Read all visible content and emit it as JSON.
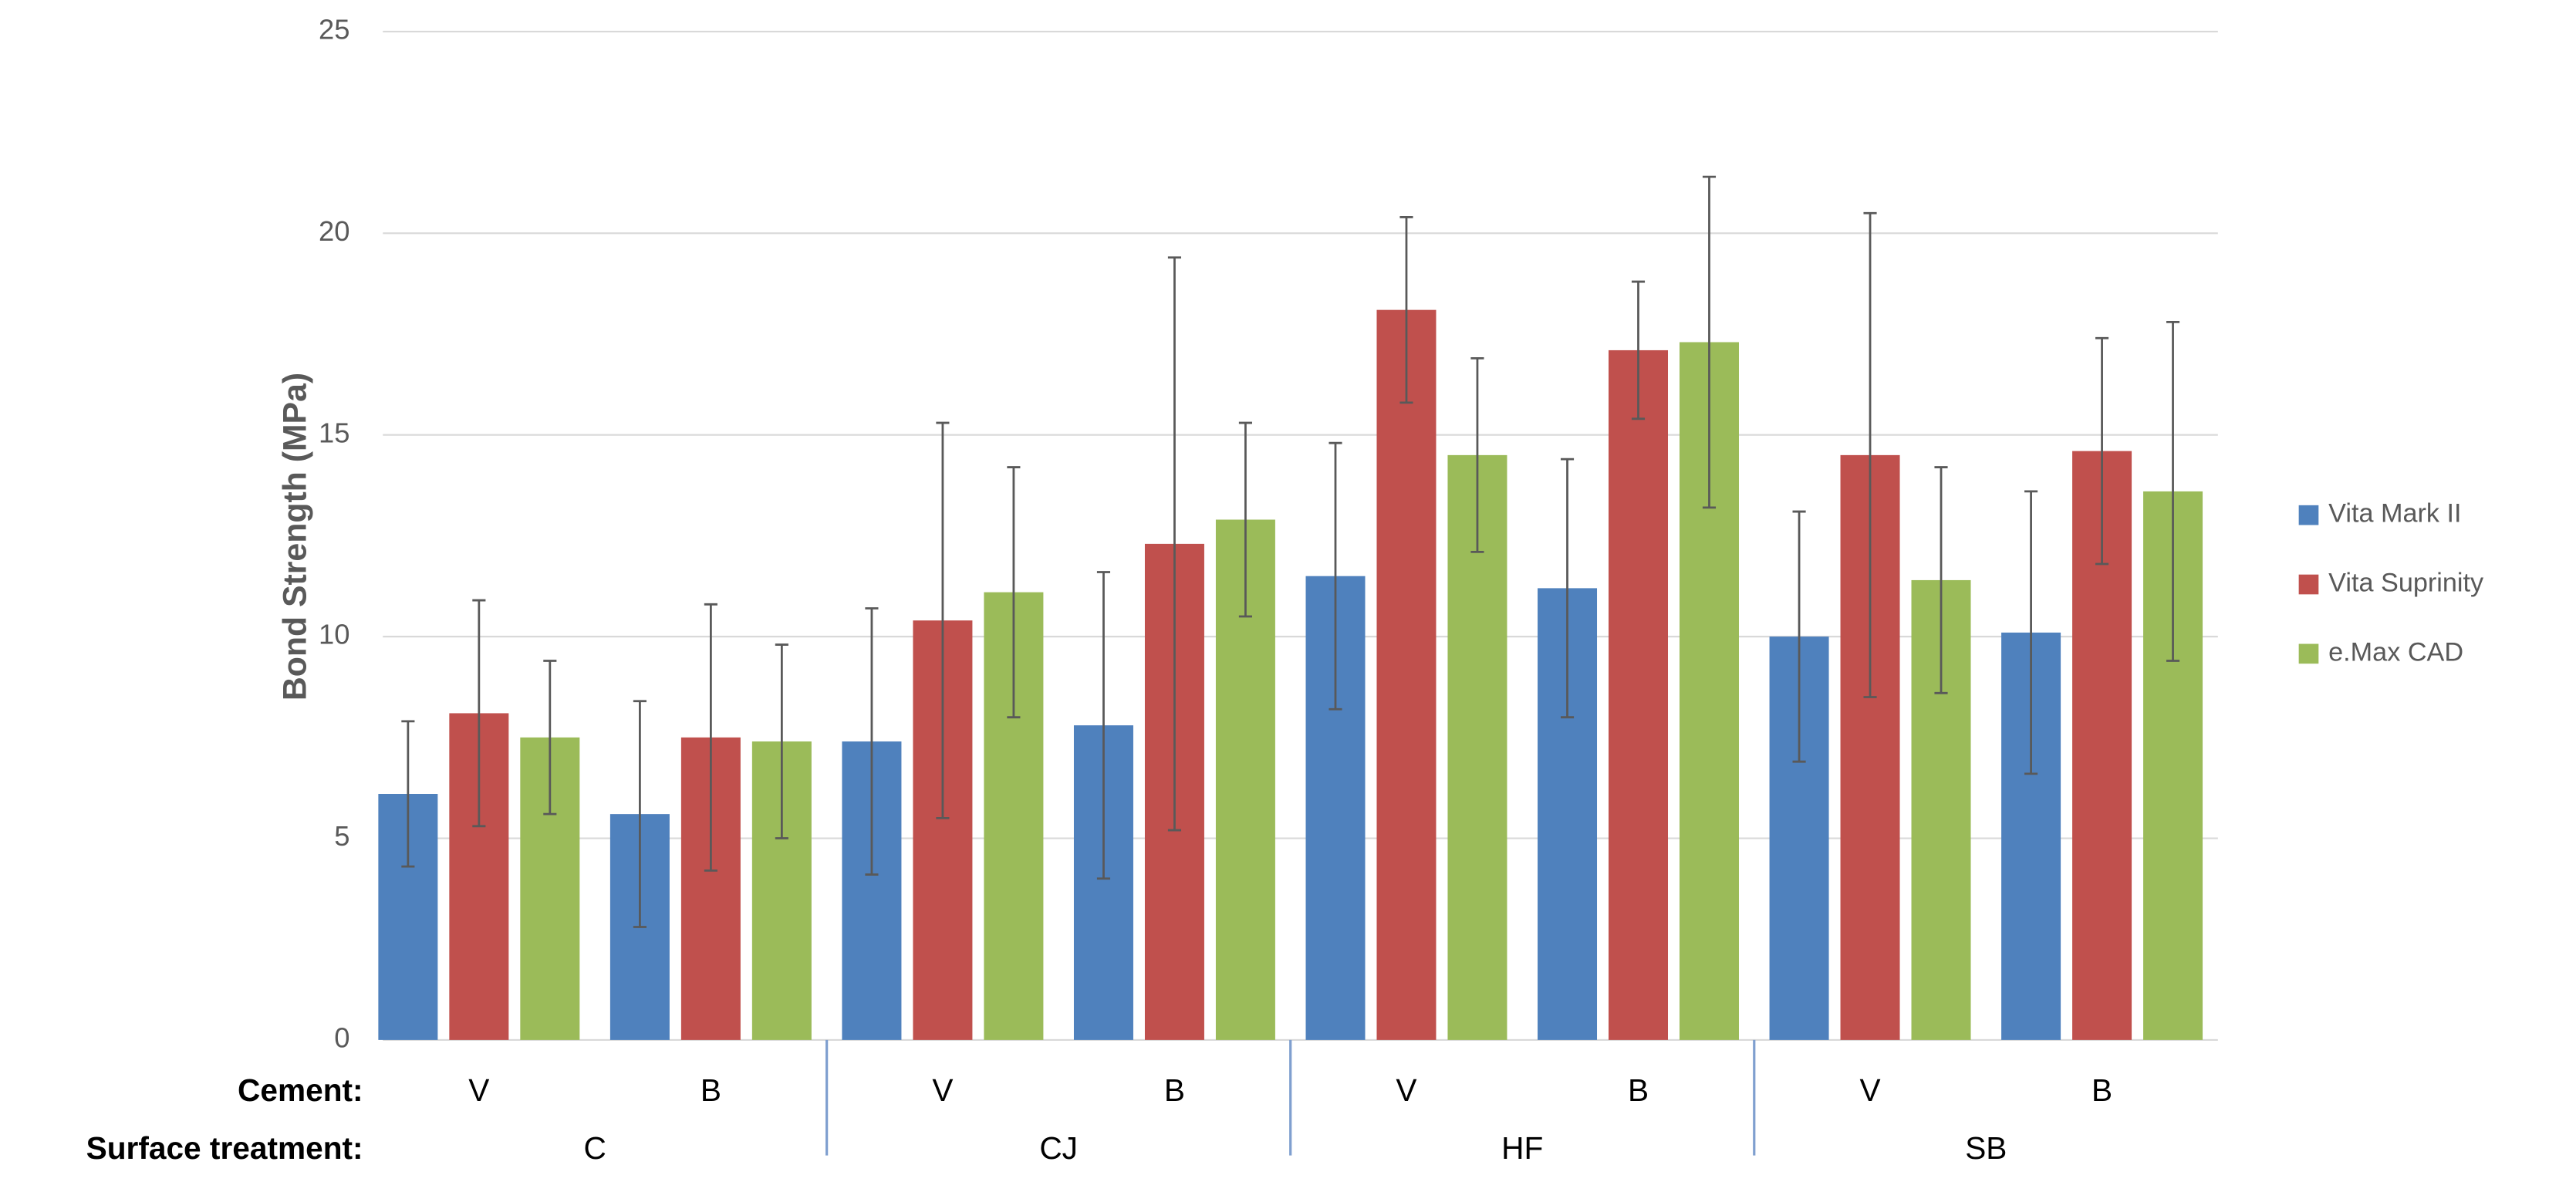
{
  "chart_data": {
    "type": "bar",
    "y_label": "Bond Strength (MPa)",
    "row_labels": [
      "Cement:",
      "Surface treatment:"
    ],
    "categories": [
      "V",
      "B",
      "V",
      "B",
      "V",
      "B",
      "V",
      "B"
    ],
    "groups": [
      "C",
      "CJ",
      "HF",
      "SB"
    ],
    "series": [
      {
        "name": "Vita Mark II",
        "color": "#4f81bd",
        "values": [
          6.1,
          5.6,
          7.4,
          7.8,
          11.5,
          11.2,
          10.0,
          10.1
        ],
        "errors": [
          1.8,
          2.8,
          3.3,
          3.8,
          3.3,
          3.2,
          3.1,
          3.5
        ]
      },
      {
        "name": "Vita Suprinity",
        "color": "#c0504d",
        "values": [
          8.1,
          7.5,
          10.4,
          12.3,
          18.1,
          17.1,
          14.5,
          14.6
        ],
        "errors": [
          2.8,
          3.3,
          4.9,
          7.1,
          2.3,
          1.7,
          6.0,
          2.8
        ]
      },
      {
        "name": "e.Max CAD",
        "color": "#9bbb59",
        "values": [
          7.5,
          7.4,
          11.1,
          12.9,
          14.5,
          17.3,
          11.4,
          13.6
        ],
        "errors": [
          1.9,
          2.4,
          3.1,
          2.4,
          2.4,
          4.1,
          2.8,
          4.2
        ]
      }
    ],
    "ylim": [
      0,
      25
    ],
    "yticks": [
      0,
      5,
      10,
      15,
      20,
      25
    ],
    "grid": true,
    "legend": "right"
  }
}
